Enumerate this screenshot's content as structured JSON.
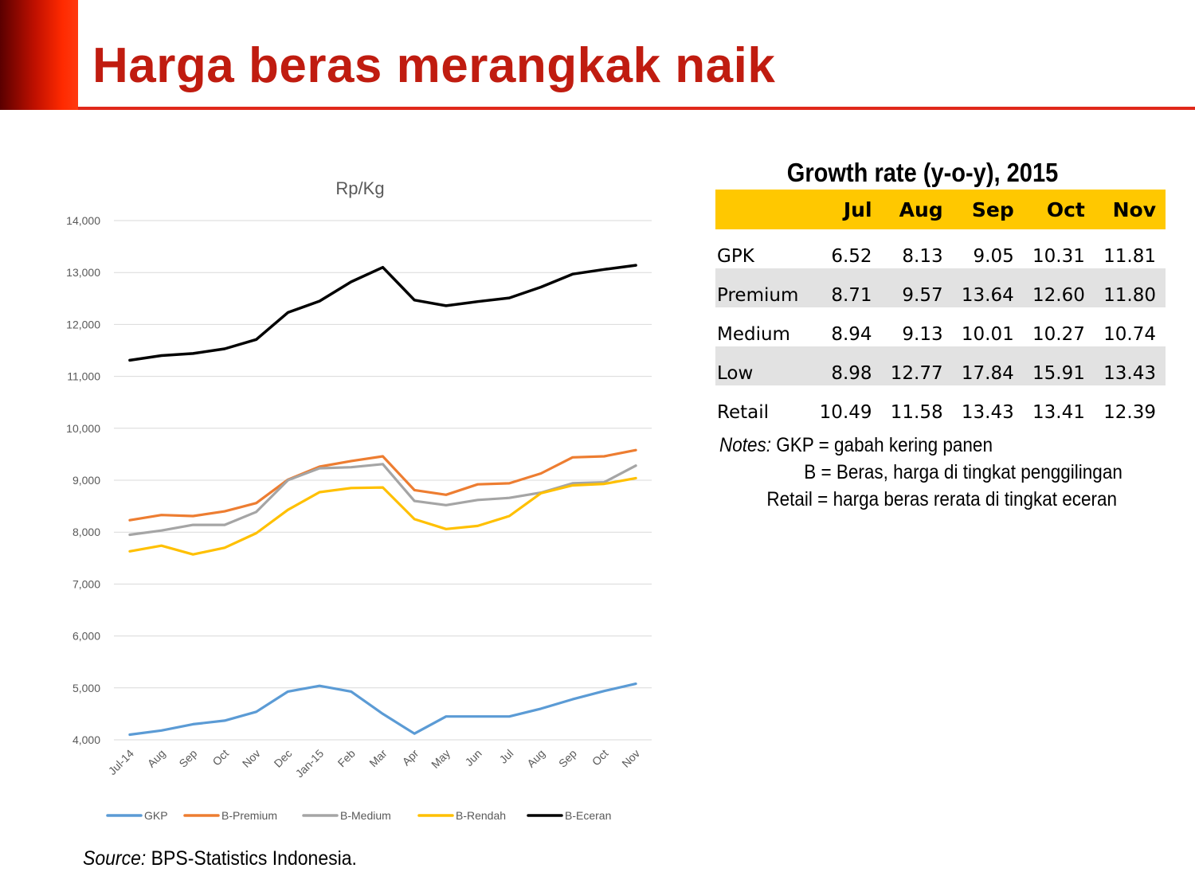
{
  "slide": {
    "title": "Harga beras merangkak naik",
    "source_label": "Source:",
    "source_text": " BPS-Statistics Indonesia."
  },
  "colors": {
    "accent_red": "#c01c10",
    "table_header": "#ffc800",
    "row_shade": "#e2e2e2"
  },
  "chart_data": {
    "type": "line",
    "title": "Rp/Kg",
    "xlabel": "",
    "ylabel": "",
    "ylim": [
      4000,
      14000
    ],
    "yticks": [
      4000,
      5000,
      6000,
      7000,
      8000,
      9000,
      10000,
      11000,
      12000,
      13000,
      14000
    ],
    "ytick_labels": [
      "4,000",
      "5,000",
      "6,000",
      "7,000",
      "8,000",
      "9,000",
      "10,000",
      "11,000",
      "12,000",
      "13,000",
      "14,000"
    ],
    "grid": true,
    "legend_position": "bottom",
    "categories": [
      "Jul-14",
      "Aug",
      "Sep",
      "Oct",
      "Nov",
      "Dec",
      "Jan-15",
      "Feb",
      "Mar",
      "Apr",
      "May",
      "Jun",
      "Jul",
      "Aug",
      "Sep",
      "Oct",
      "Nov"
    ],
    "series": [
      {
        "name": "GKP",
        "color": "#5b9bd5",
        "values": [
          4100,
          4180,
          4300,
          4370,
          4540,
          4930,
          5040,
          4930,
          4500,
          4120,
          4450,
          4450,
          4450,
          4600,
          4780,
          4940,
          5080
        ]
      },
      {
        "name": "B-Premium",
        "color": "#ed7d31",
        "values": [
          8230,
          8330,
          8310,
          8400,
          8560,
          9010,
          9260,
          9370,
          9460,
          8810,
          8720,
          8920,
          8940,
          9130,
          9440,
          9460,
          9580
        ]
      },
      {
        "name": "B-Medium",
        "color": "#a5a5a5",
        "values": [
          7950,
          8030,
          8140,
          8140,
          8390,
          9000,
          9230,
          9250,
          9310,
          8600,
          8520,
          8620,
          8660,
          8760,
          8940,
          8960,
          9280
        ]
      },
      {
        "name": "B-Rendah",
        "color": "#ffc000",
        "values": [
          7630,
          7740,
          7570,
          7700,
          7980,
          8430,
          8770,
          8850,
          8860,
          8250,
          8060,
          8120,
          8310,
          8750,
          8900,
          8930,
          9040
        ]
      },
      {
        "name": "B-Eceran",
        "color": "#000000",
        "values": [
          11310,
          11400,
          11440,
          11530,
          11710,
          12230,
          12450,
          12820,
          13100,
          12470,
          12360,
          12440,
          12510,
          12720,
          12970,
          13060,
          13140
        ]
      }
    ]
  },
  "table": {
    "title": "Growth rate (y-o-y), 2015",
    "headers": [
      "",
      "Jul",
      "Aug",
      "Sep",
      "Oct",
      "Nov"
    ],
    "rows": [
      {
        "label": "GPK",
        "values": [
          "6.52",
          "8.13",
          "9.05",
          "10.31",
          "11.81"
        ],
        "shaded": false
      },
      {
        "label": "Premium",
        "values": [
          "8.71",
          "9.57",
          "13.64",
          "12.60",
          "11.80"
        ],
        "shaded": true
      },
      {
        "label": "Medium",
        "values": [
          "8.94",
          "9.13",
          "10.01",
          "10.27",
          "10.74"
        ],
        "shaded": false
      },
      {
        "label": "Low",
        "values": [
          "8.98",
          "12.77",
          "17.84",
          "15.91",
          "13.43"
        ],
        "shaded": true
      },
      {
        "label": "Retail",
        "values": [
          "10.49",
          "11.58",
          "13.43",
          "13.41",
          "12.39"
        ],
        "shaded": false
      }
    ]
  },
  "notes": {
    "label": "Notes:",
    "line1": " GKP = gabah kering panen",
    "line2": "B = Beras, harga di tingkat penggilingan",
    "line3": "Retail = harga beras rerata di tingkat eceran"
  }
}
